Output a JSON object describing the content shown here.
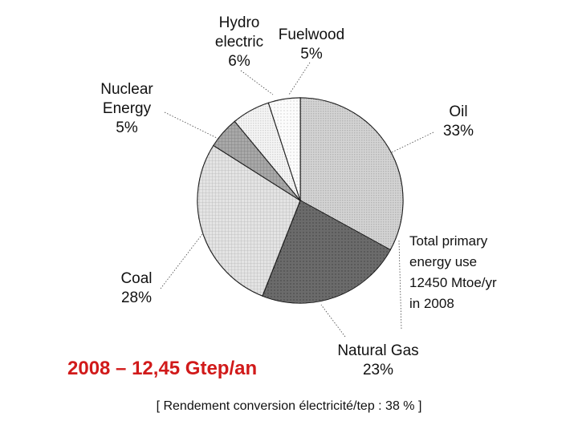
{
  "chart_data": {
    "type": "pie",
    "slices": [
      {
        "label": "Oil",
        "value": 33,
        "value_label": "33%",
        "color": "#bdbdbd"
      },
      {
        "label": "Natural Gas",
        "value": 23,
        "value_label": "23%",
        "color": "#1c1c1c"
      },
      {
        "label": "Coal",
        "value": 28,
        "value_label": "28%",
        "color": "#d6d6d6"
      },
      {
        "label": "Nuclear Energy",
        "value": 5,
        "value_label": "5%",
        "color": "#7a7a7a"
      },
      {
        "label": "Hydro electric",
        "value": 6,
        "value_label": "6%",
        "color": "#f0f0f0"
      },
      {
        "label": "Fuelwood",
        "value": 5,
        "value_label": "5%",
        "color": "#fafafa"
      }
    ],
    "labels": {
      "hydro_line1": "Hydro",
      "hydro_line2": "electric",
      "hydro_pct": "6%",
      "fuelwood": "Fuelwood",
      "fuelwood_pct": "5%",
      "nuclear_line1": "Nuclear",
      "nuclear_line2": "Energy",
      "nuclear_pct": "5%",
      "oil": "Oil",
      "oil_pct": "33%",
      "coal": "Coal",
      "coal_pct": "28%",
      "gas": "Natural Gas",
      "gas_pct": "23%"
    },
    "annotation": [
      "Total primary",
      "energy use",
      "12450 Mtoe/yr",
      "in 2008"
    ]
  },
  "headline": "2008 – 12,45 Gtep/an",
  "footer": "[ Rendement conversion électricité/tep : 38 % ]",
  "colors": {
    "headline": "#d11a1a",
    "outline": "#000000"
  }
}
